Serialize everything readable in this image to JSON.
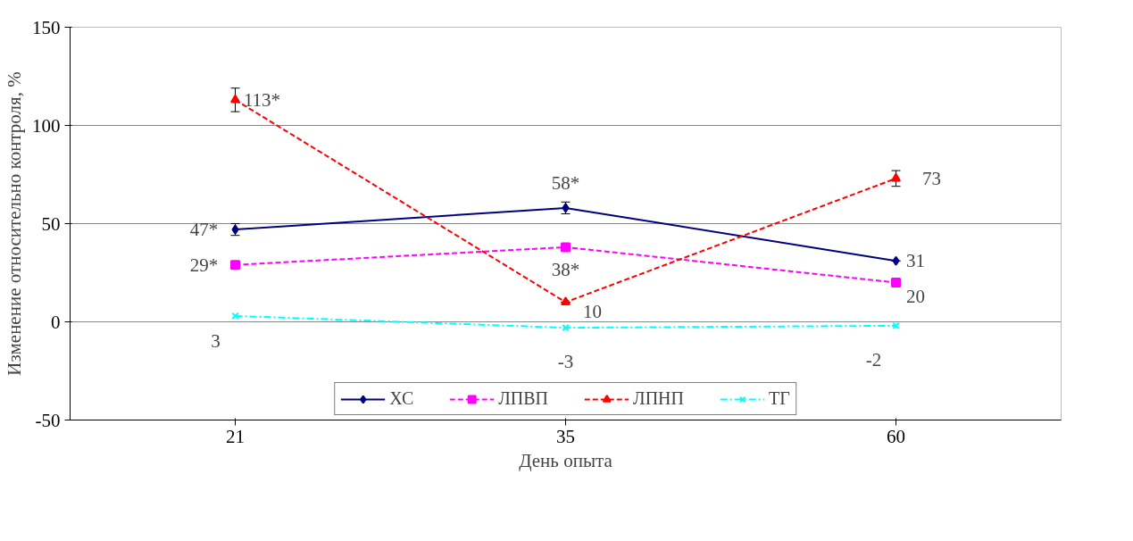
{
  "chart_data": {
    "type": "line",
    "xlabel": "День опыта",
    "ylabel": "Изменение относительно контроля, %",
    "categories": [
      "21",
      "35",
      "60"
    ],
    "ylim": [
      -50,
      150
    ],
    "yticks": [
      -50,
      0,
      50,
      100,
      150
    ],
    "grid": "y",
    "legend": "bottom",
    "series": [
      {
        "name": "ХС",
        "color": "#000080",
        "marker": "diamond",
        "line_style": "solid",
        "values": [
          47,
          58,
          31
        ],
        "errors": [
          3,
          3,
          null
        ],
        "value_labels": [
          "47*",
          "58*",
          "31"
        ]
      },
      {
        "name": "ЛПВП",
        "color": "#ff00ff",
        "marker": "square",
        "line_style": "dashed",
        "values": [
          29,
          38,
          20
        ],
        "value_labels": [
          "29*",
          "38*",
          "20"
        ]
      },
      {
        "name": "ЛПНП",
        "color": "#ff0000",
        "marker": "triangle",
        "line_style": "dashed",
        "values": [
          113,
          10,
          73
        ],
        "errors": [
          6,
          null,
          4
        ],
        "value_labels": [
          "113*",
          "10",
          "73"
        ]
      },
      {
        "name": "ТГ",
        "color": "#00ffff",
        "marker": "cross",
        "line_style": "dashdot",
        "values": [
          3,
          -3,
          -2
        ],
        "value_labels": [
          "3",
          "-3",
          "-2"
        ]
      }
    ]
  }
}
